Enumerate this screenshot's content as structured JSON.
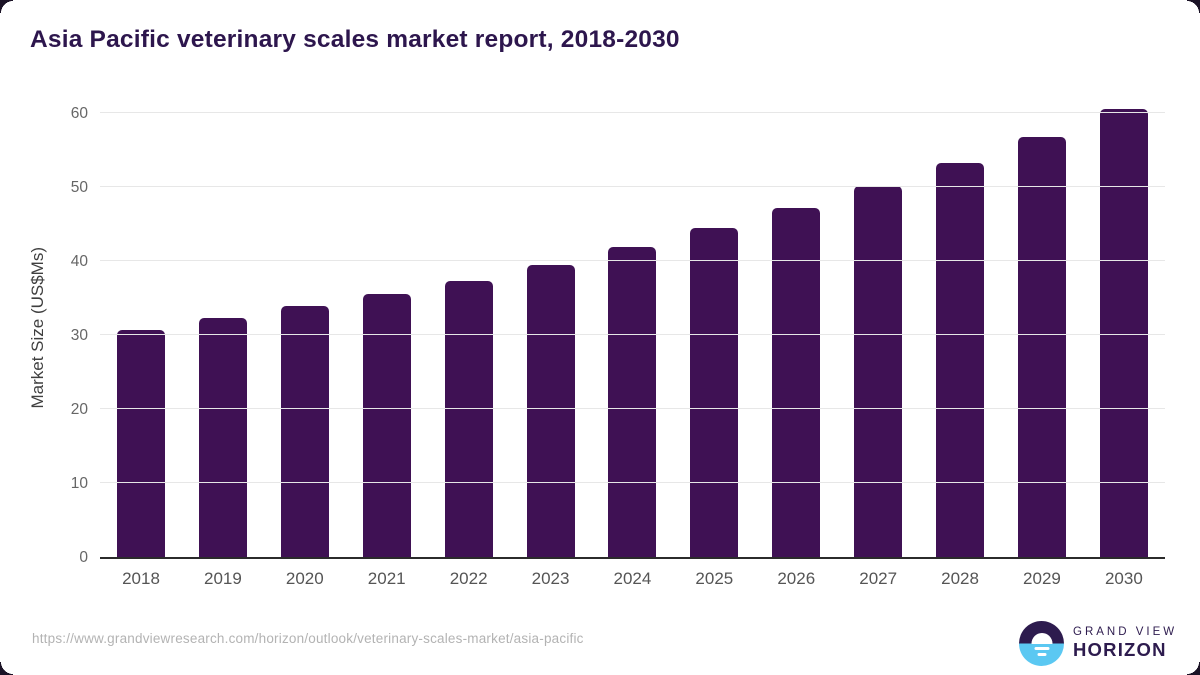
{
  "chart_data": {
    "type": "bar",
    "title": "Asia Pacific veterinary scales market report, 2018-2030",
    "categories": [
      "2018",
      "2019",
      "2020",
      "2021",
      "2022",
      "2023",
      "2024",
      "2025",
      "2026",
      "2027",
      "2028",
      "2029",
      "2030"
    ],
    "values": [
      30.7,
      32.3,
      33.9,
      35.5,
      37.3,
      39.4,
      41.9,
      44.4,
      47.1,
      50.1,
      53.3,
      56.7,
      60.5
    ],
    "xlabel": "",
    "ylabel": "Market Size (US$Ms)",
    "yticks": [
      0,
      10,
      20,
      30,
      40,
      50,
      60
    ],
    "ylim": [
      0,
      62
    ],
    "grid": "horizontal",
    "legend_position": "none",
    "bar_color": "#3f1154"
  },
  "footer": {
    "source_url": "https://www.grandviewresearch.com/horizon/outlook/veterinary-scales-market/asia-pacific",
    "logo": {
      "line1": "GRAND VIEW",
      "line2": "HORIZON"
    }
  },
  "colors": {
    "title_text": "#2d164d",
    "bar": "#3f1154",
    "gridline": "#e7e7e7",
    "axis_baseline": "#2b2b2b",
    "tick_text": "#666666",
    "url_text": "#b3b3b3",
    "logo_purple": "#2d1b4e",
    "logo_blue": "#5bc8f2"
  }
}
